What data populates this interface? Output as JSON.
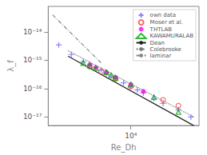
{
  "chart_data": {
    "type": "line",
    "xlabel": "Re_Dh",
    "ylabel": "λ_f",
    "log": true,
    "grid": false,
    "legend": "upper right",
    "xlim": [
      3000,
      27000
    ],
    "ylim": [
      5e-18,
      8e-14
    ],
    "xticks": [
      {
        "value": 10000,
        "label": "10⁴"
      }
    ],
    "yticks": [
      {
        "value": 1e-17,
        "label": "10⁻¹⁷"
      },
      {
        "value": 1e-16,
        "label": "10⁻¹⁶"
      },
      {
        "value": 1e-15,
        "label": "10⁻¹⁵"
      },
      {
        "value": 1e-14,
        "label": "10⁻¹⁴"
      }
    ],
    "series": [
      {
        "name": "own data",
        "type": "scatter",
        "marker": "plus",
        "color": "#6666ff",
        "x": [
          3500,
          4200,
          5000,
          5500,
          6000,
          6500,
          7000,
          7500,
          8000,
          9000,
          10000,
          11000,
          12000,
          14000,
          16000,
          20000,
          24000
        ],
        "values": [
          3.5e-15,
          1.6e-15,
          9e-16,
          7e-16,
          5.5e-16,
          4.5e-16,
          3.5e-16,
          2.8e-16,
          2.3e-16,
          1.6e-16,
          1.2e-16,
          9e-17,
          7e-17,
          4.5e-17,
          3e-17,
          1.8e-17,
          1e-17
        ]
      },
      {
        "name": "Moser et al.",
        "type": "scatter",
        "marker": "circle_open",
        "color": "#ff4444",
        "x": [
          5500,
          6500,
          8000,
          10000,
          16000,
          20000
        ],
        "values": [
          6e-16,
          4e-16,
          2.2e-16,
          1.2e-16,
          4e-17,
          2.5e-17
        ]
      },
      {
        "name": "THTLAB",
        "type": "scatter",
        "marker": "circle",
        "color": "#ff00ff",
        "x": [
          5500,
          6000,
          7000,
          8000,
          10000,
          12000
        ],
        "values": [
          7e-16,
          5.5e-16,
          3.8e-16,
          2.5e-16,
          1.4e-16,
          8e-17
        ]
      },
      {
        "name": "KAWAMURALAB",
        "type": "scatter",
        "marker": "triangle_open",
        "color": "#00aa00",
        "x": [
          5000,
          5500,
          6000,
          7000,
          7500,
          8000,
          10000,
          14000,
          20000
        ],
        "values": [
          8e-16,
          6.5e-16,
          5.3e-16,
          3.8e-16,
          3e-16,
          2.4e-16,
          1.4e-16,
          5e-17,
          1.5e-17
        ]
      },
      {
        "name": "Dean",
        "type": "line",
        "line_style": "solid",
        "color": "#222222",
        "x": [
          4000,
          25000
        ],
        "values": [
          1.4e-15,
          5e-18
        ]
      },
      {
        "name": "Colebrooke",
        "type": "line",
        "line_style": "dotted",
        "color": "#777777",
        "x": [
          4000,
          25000
        ],
        "values": [
          2.2e-15,
          1e-17
        ]
      },
      {
        "name": "laminar",
        "type": "line",
        "line_style": "dashdot",
        "color": "#888888",
        "x": [
          3200,
          6500
        ],
        "values": [
          4e-14,
          8e-16
        ]
      }
    ]
  }
}
